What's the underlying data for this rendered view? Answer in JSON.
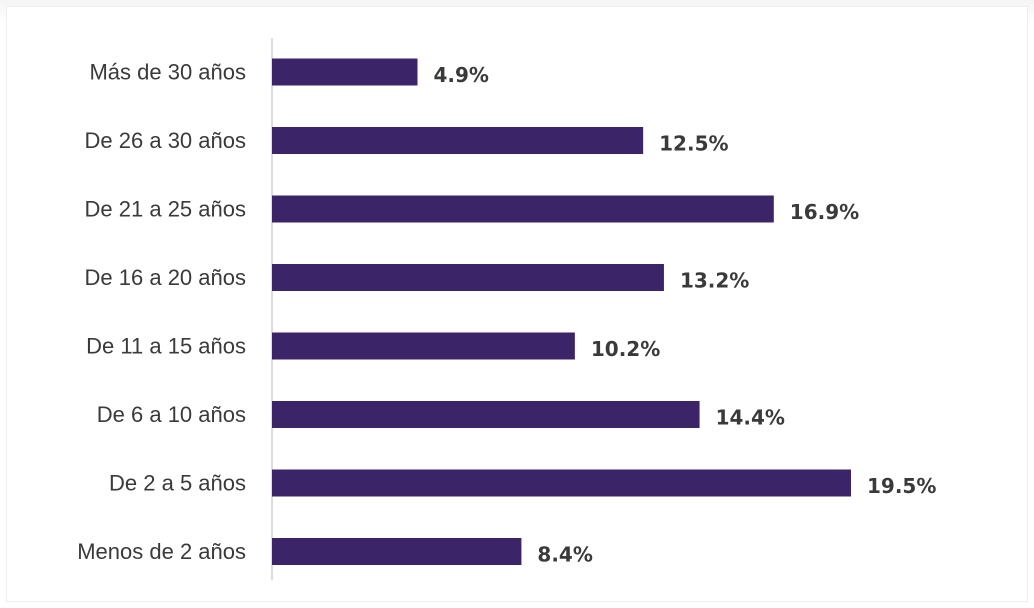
{
  "colors": {
    "bar": "#3b2568",
    "axis": "#d0d0d0",
    "text": "#3a3a3a"
  },
  "chart_data": {
    "type": "bar",
    "orientation": "horizontal",
    "categories": [
      "Más de 30 años",
      "De 26 a 30 años",
      "De 21 a 25 años",
      "De 16 a 20 años",
      "De 11 a 15 años",
      "De 6 a 10 años",
      "De 2 a 5 años",
      "Menos de 2 años"
    ],
    "values": [
      4.9,
      12.5,
      16.9,
      13.2,
      10.2,
      14.4,
      19.5,
      8.4
    ],
    "value_labels": [
      "4.9%",
      "12.5%",
      "16.9%",
      "13.2%",
      "10.2%",
      "14.4%",
      "19.5%",
      "8.4%"
    ],
    "xlim": [
      0,
      19.5
    ],
    "grid": false,
    "legend": "none"
  }
}
